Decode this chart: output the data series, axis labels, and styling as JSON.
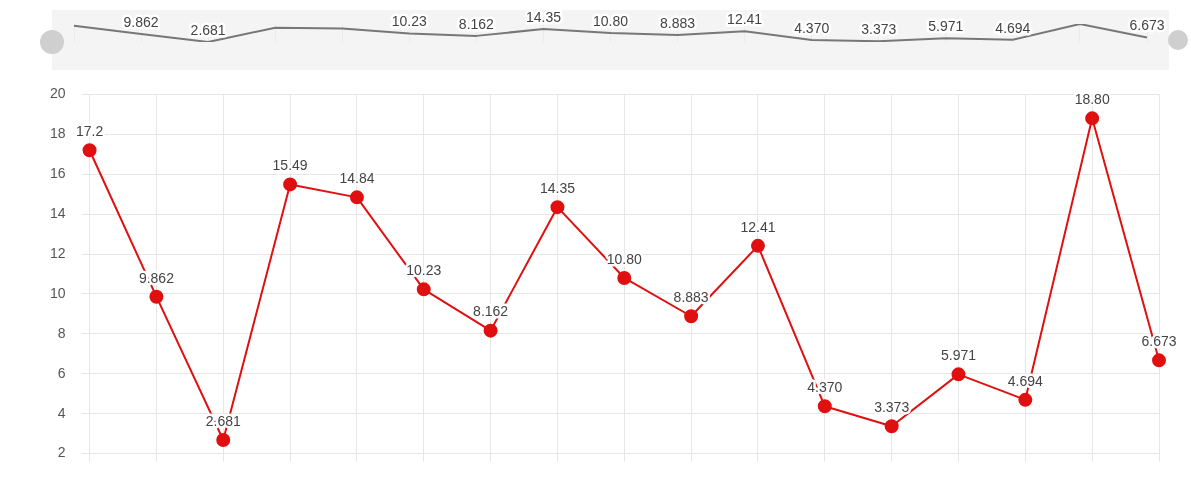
{
  "chart_data": [
    {
      "type": "line",
      "categories": [
        null,
        null,
        null,
        null,
        null,
        null,
        null,
        null,
        null,
        null,
        null,
        null,
        null,
        null,
        null,
        null,
        null
      ],
      "series": [
        {
          "color": "#777777",
          "values": [
            17.2,
            9.862,
            2.681,
            15.49,
            14.84,
            10.23,
            8.162,
            14.35,
            10.8,
            8.883,
            12.41,
            4.37,
            3.373,
            5.971,
            4.694,
            18.8,
            6.673
          ],
          "value_labels": [
            null,
            "9.862",
            "2.681",
            null,
            null,
            "10.23",
            "8.162",
            "14.35",
            "10.80",
            "8.883",
            "12.41",
            "4.370",
            "3.373",
            "5.971",
            "4.694",
            null,
            "6.673"
          ]
        }
      ],
      "grid": "x",
      "legend": false,
      "marker": "none",
      "line_style": "solid"
    },
    {
      "type": "line",
      "categories": [
        null,
        null,
        null,
        null,
        null,
        null,
        null,
        null,
        null,
        null,
        null,
        null,
        null,
        null,
        null,
        null,
        null
      ],
      "series": [
        {
          "color": "#e01010",
          "values": [
            17.2,
            9.862,
            2.681,
            15.49,
            14.84,
            10.23,
            8.162,
            14.35,
            10.8,
            8.883,
            12.41,
            4.37,
            3.373,
            5.971,
            4.694,
            18.8,
            6.673
          ],
          "value_labels": [
            "17.2",
            "9.862",
            "2.681",
            "15.49",
            "14.84",
            "10.23",
            "8.162",
            "14.35",
            "10.80",
            "8.883",
            "12.41",
            "4.370",
            "3.373",
            "5.971",
            "4.694",
            "18.80",
            "6.673"
          ]
        }
      ],
      "ylim": [
        2,
        20
      ],
      "yticks": [
        2,
        4,
        6,
        8,
        10,
        12,
        14,
        16,
        18,
        20
      ],
      "grid": true,
      "legend": false,
      "marker": "circle",
      "line_style": "solid"
    }
  ]
}
